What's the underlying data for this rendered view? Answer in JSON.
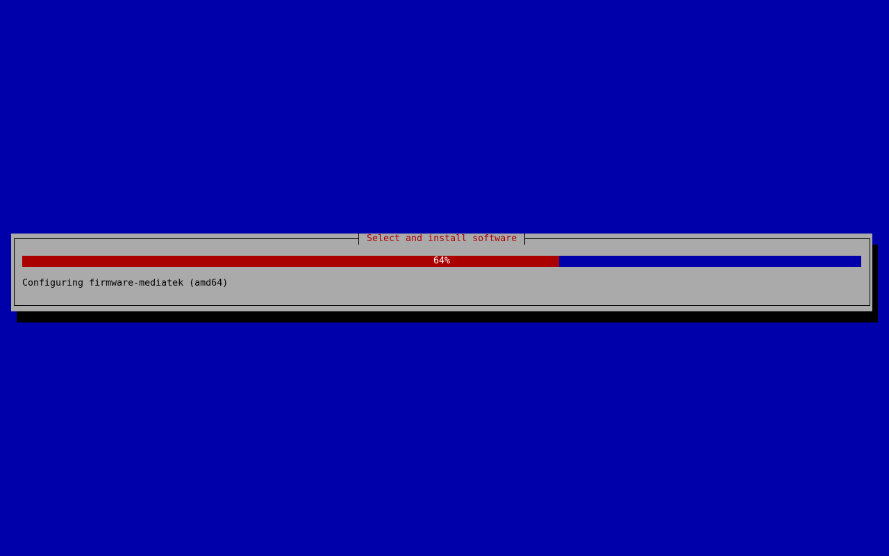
{
  "dialog": {
    "title": "Select and install software",
    "progress": {
      "percent": 64,
      "label": "64%"
    },
    "status": "Configuring firmware-mediatek (amd64)"
  },
  "colors": {
    "background": "#0000aa",
    "dialog": "#aaaaaa",
    "progress_fill": "#aa0000",
    "title_text": "#aa0000"
  }
}
